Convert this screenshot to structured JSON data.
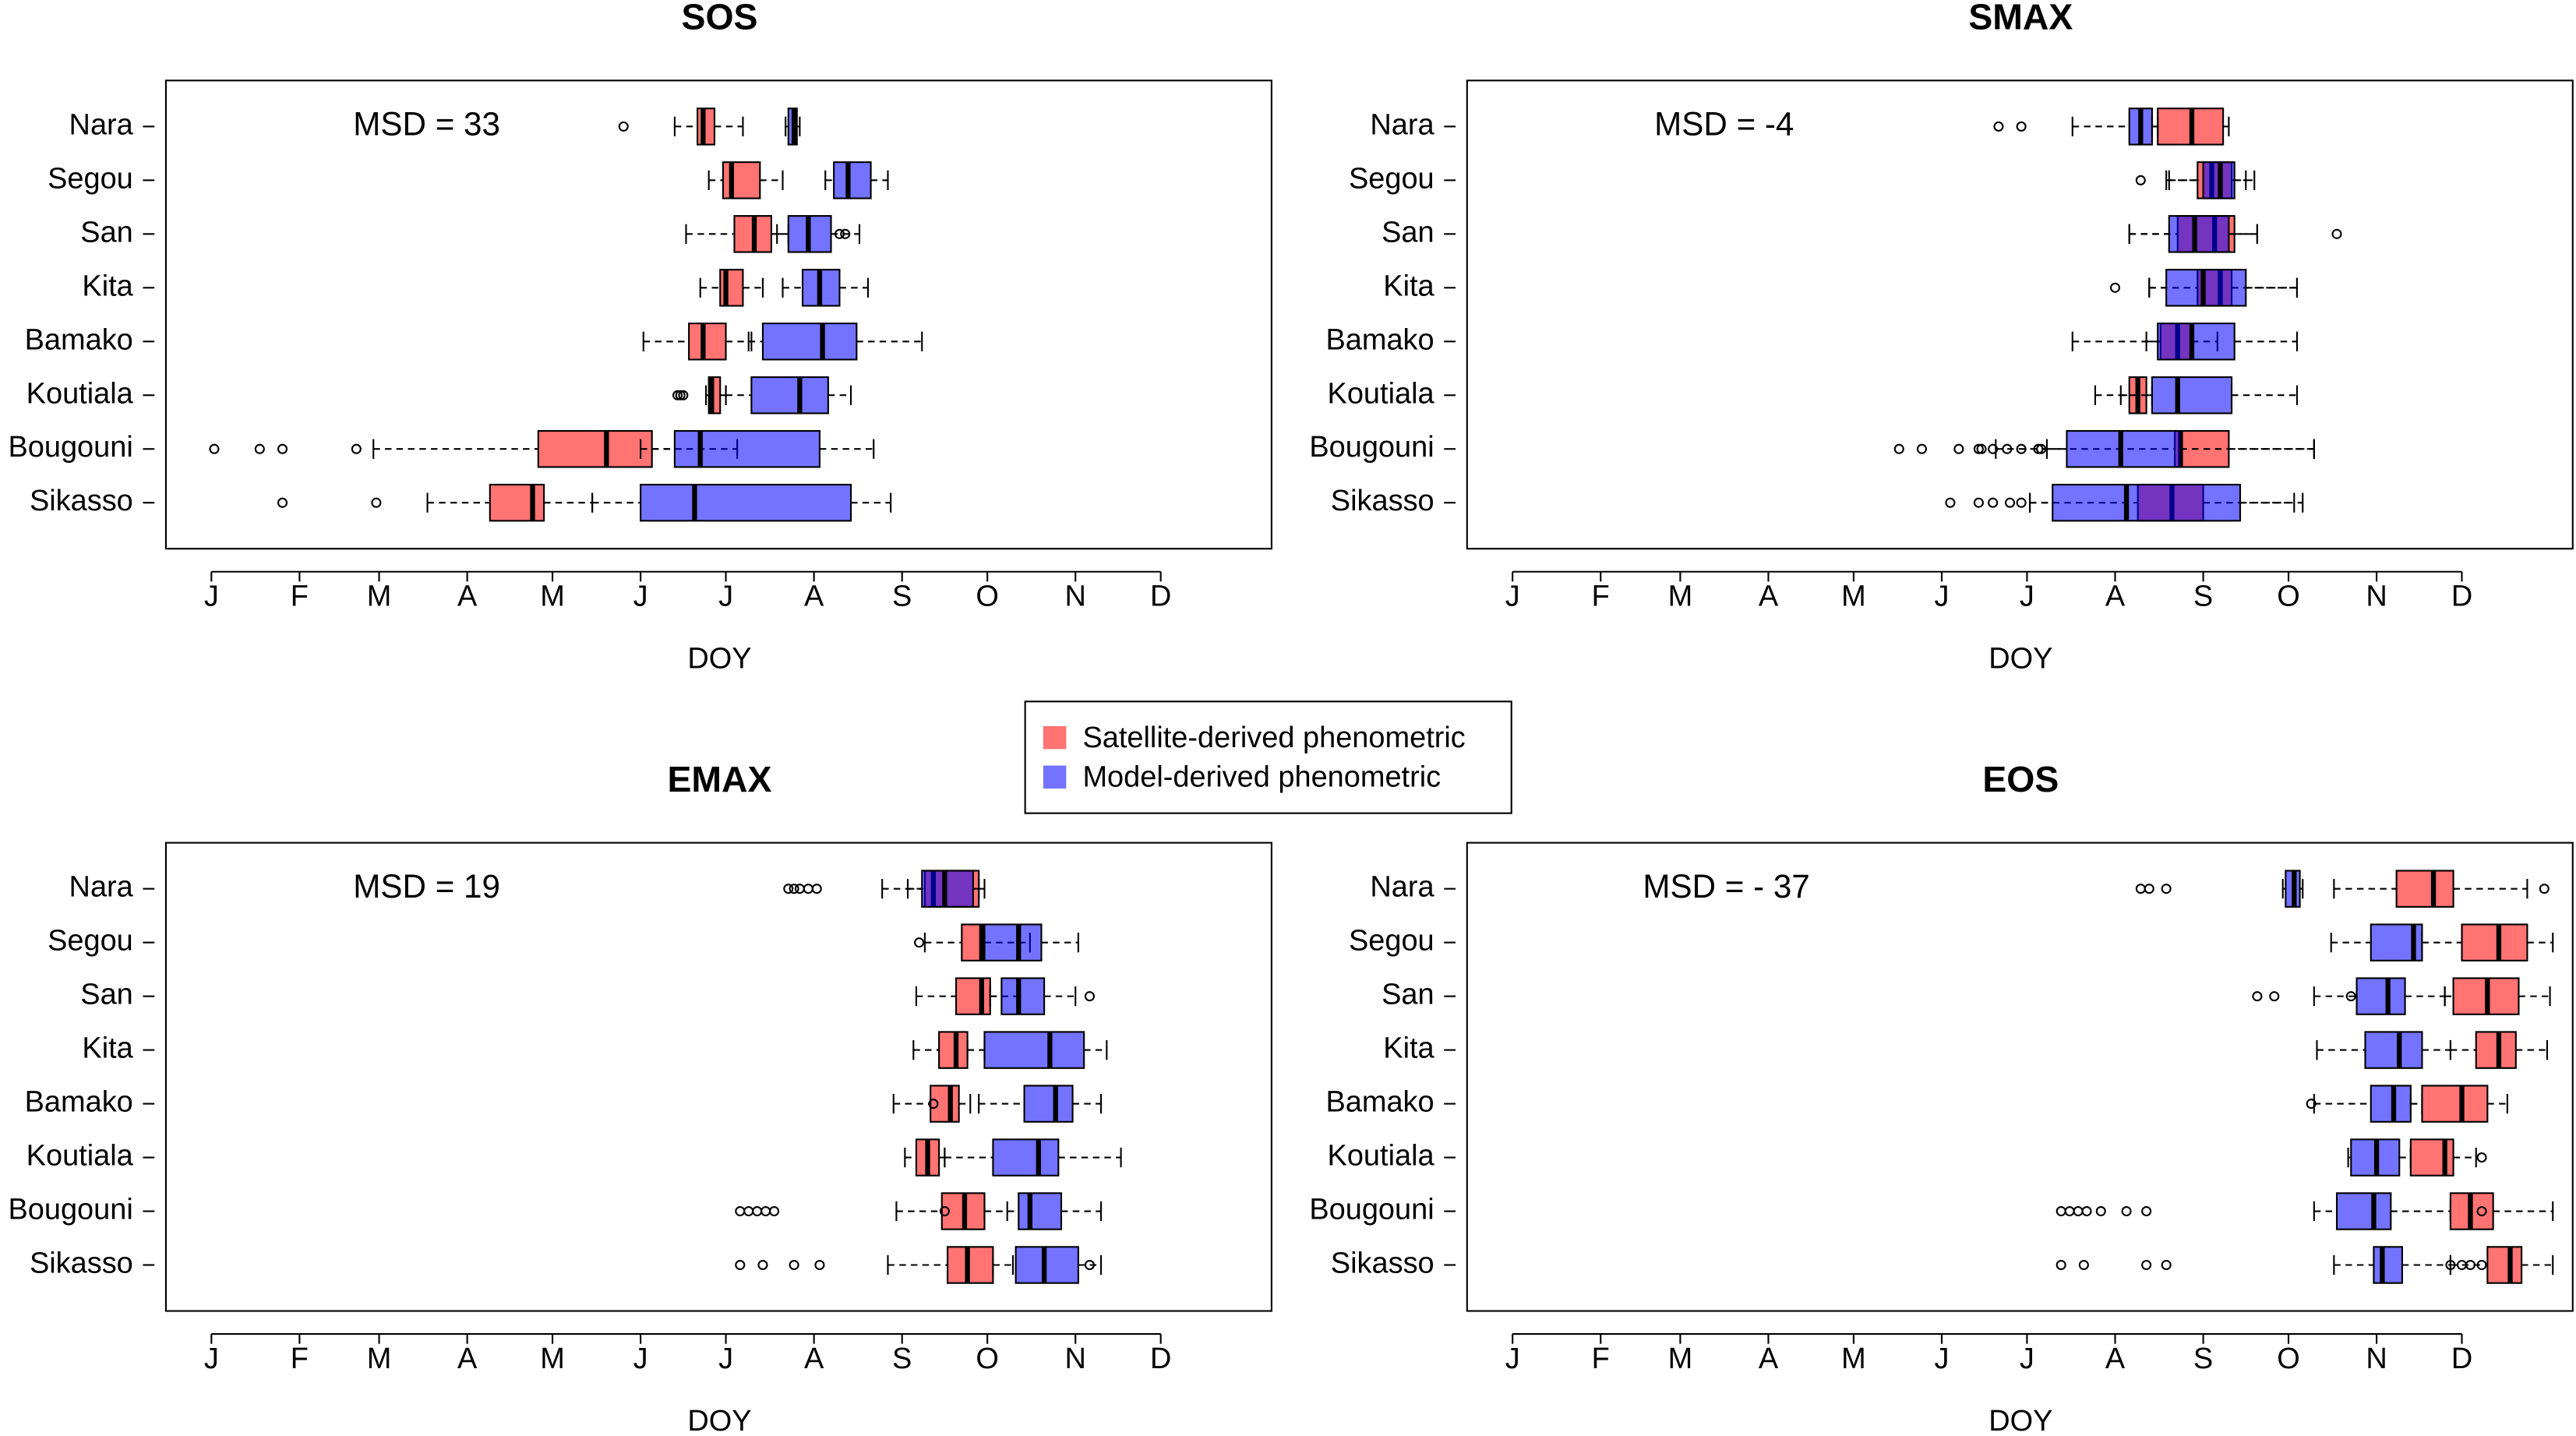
{
  "legend": [
    {
      "name": "Satellite-derived phenometric",
      "color": "#ff0000"
    },
    {
      "name": "Model-derived phenometric",
      "color": "#0000ff"
    }
  ],
  "chart_data": [
    {
      "type": "boxplot",
      "title": "SOS",
      "annotation": "MSD = 33",
      "xlabel": "DOY",
      "fill_opacity": 0.55,
      "categories": [
        "Nara",
        "Segou",
        "San",
        "Kita",
        "Bamako",
        "Koutiala",
        "Bougouni",
        "Sikasso"
      ],
      "xlim": [
        -15,
        374
      ],
      "xticks": [
        {
          "value": 1,
          "label": "J"
        },
        {
          "value": 32,
          "label": "F"
        },
        {
          "value": 60,
          "label": "M"
        },
        {
          "value": 91,
          "label": "A"
        },
        {
          "value": 121,
          "label": "M"
        },
        {
          "value": 152,
          "label": "J"
        },
        {
          "value": 182,
          "label": "J"
        },
        {
          "value": 213,
          "label": "A"
        },
        {
          "value": 244,
          "label": "S"
        },
        {
          "value": 274,
          "label": "O"
        },
        {
          "value": 305,
          "label": "N"
        },
        {
          "value": 335,
          "label": "D"
        }
      ],
      "series": [
        {
          "color": "#ff0000",
          "min": [
            164,
            176,
            168,
            173,
            153,
            175,
            58,
            77
          ],
          "q1": [
            172,
            181,
            185,
            180,
            169,
            176,
            116,
            99
          ],
          "median": [
            174,
            184,
            192,
            182,
            174,
            177,
            140,
            114
          ],
          "q3": [
            178,
            194,
            198,
            188,
            182,
            180,
            156,
            118
          ],
          "max": [
            188,
            202,
            204,
            195,
            191,
            182,
            186,
            135
          ],
          "outliers": [
            [
              146
            ],
            [],
            [],
            [],
            [],
            [
              165,
              166,
              167
            ],
            [
              2,
              18,
              26,
              52
            ],
            [
              26,
              59
            ]
          ]
        },
        {
          "color": "#0000ff",
          "min": [
            203,
            217,
            200,
            202,
            190,
            182,
            152,
            135
          ],
          "q1": [
            204,
            220,
            204,
            209,
            195,
            191,
            164,
            152
          ],
          "median": [
            206,
            225,
            211,
            215,
            216,
            208,
            173,
            171
          ],
          "q3": [
            207,
            233,
            219,
            222,
            228,
            218,
            215,
            226
          ],
          "max": [
            208,
            239,
            229,
            232,
            251,
            226,
            234,
            240
          ],
          "outliers": [
            [],
            [],
            [
              222,
              224
            ],
            [],
            [],
            [],
            [],
            []
          ]
        }
      ]
    },
    {
      "type": "boxplot",
      "title": "SMAX",
      "annotation": "MSD = -4",
      "xlabel": "DOY",
      "fill_opacity": 0.55,
      "categories": [
        "Nara",
        "Segou",
        "San",
        "Kita",
        "Bamako",
        "Koutiala",
        "Bougouni",
        "Sikasso"
      ],
      "xlim": [
        -15,
        374
      ],
      "xticks": [
        {
          "value": 1,
          "label": "J"
        },
        {
          "value": 32,
          "label": "F"
        },
        {
          "value": 60,
          "label": "M"
        },
        {
          "value": 91,
          "label": "A"
        },
        {
          "value": 121,
          "label": "M"
        },
        {
          "value": 152,
          "label": "J"
        },
        {
          "value": 182,
          "label": "J"
        },
        {
          "value": 213,
          "label": "A"
        },
        {
          "value": 244,
          "label": "S"
        },
        {
          "value": 274,
          "label": "O"
        },
        {
          "value": 305,
          "label": "N"
        },
        {
          "value": 335,
          "label": "D"
        }
      ],
      "series": [
        {
          "color": "#ff0000",
          "min": [
            226,
            231,
            218,
            225,
            224,
            215,
            189,
            183
          ],
          "q1": [
            228,
            242,
            235,
            242,
            229,
            218,
            234,
            221
          ],
          "median": [
            240,
            247,
            248,
            250,
            235,
            221,
            236,
            233
          ],
          "q3": [
            251,
            254,
            255,
            254,
            240,
            224,
            253,
            244
          ],
          "max": [
            253,
            259,
            263,
            277,
            249,
            226,
            283,
            276
          ],
          "outliers": [
            [],
            [],
            [],
            [],
            [],
            [],
            [
              165,
              170,
              175,
              180,
              186
            ],
            [
              165,
              170,
              176
            ]
          ]
        },
        {
          "color": "#0000ff",
          "min": [
            198,
            232,
            218,
            225,
            198,
            206,
            171,
            183
          ],
          "q1": [
            218,
            244,
            232,
            231,
            228,
            226,
            196,
            191
          ],
          "median": [
            222,
            250,
            241,
            244,
            240,
            235,
            215,
            217
          ],
          "q3": [
            226,
            255,
            253,
            259,
            255,
            254,
            236,
            257
          ],
          "max": [
            228,
            262,
            263,
            277,
            277,
            277,
            283,
            279
          ],
          "outliers": [
            [
              172,
              180
            ],
            [
              222
            ],
            [
              291
            ],
            [
              213
            ],
            [],
            [],
            [
              137,
              145,
              158,
              166,
              187
            ],
            [
              155,
              180
            ]
          ]
        }
      ]
    },
    {
      "type": "boxplot",
      "title": "EMAX",
      "annotation": "MSD = 19",
      "xlabel": "DOY",
      "fill_opacity": 0.55,
      "categories": [
        "Nara",
        "Segou",
        "San",
        "Kita",
        "Bamako",
        "Koutiala",
        "Bougouni",
        "Sikasso"
      ],
      "xlim": [
        -15,
        374
      ],
      "xticks": [
        {
          "value": 1,
          "label": "J"
        },
        {
          "value": 32,
          "label": "F"
        },
        {
          "value": 60,
          "label": "M"
        },
        {
          "value": 91,
          "label": "A"
        },
        {
          "value": 121,
          "label": "M"
        },
        {
          "value": 152,
          "label": "J"
        },
        {
          "value": 182,
          "label": "J"
        },
        {
          "value": 213,
          "label": "A"
        },
        {
          "value": 244,
          "label": "S"
        },
        {
          "value": 274,
          "label": "O"
        },
        {
          "value": 305,
          "label": "N"
        },
        {
          "value": 335,
          "label": "D"
        }
      ],
      "series": [
        {
          "color": "#ff0000",
          "min": [
            237,
            252,
            249,
            248,
            241,
            245,
            242,
            239
          ],
          "q1": [
            252,
            265,
            263,
            257,
            254,
            249,
            258,
            260
          ],
          "median": [
            255,
            272,
            272,
            263,
            261,
            253,
            266,
            267
          ],
          "q3": [
            271,
            273,
            275,
            267,
            264,
            257,
            273,
            276
          ],
          "max": [
            273,
            289,
            285,
            273,
            268,
            259,
            281,
            283
          ],
          "outliers": [
            [],
            [
              250
            ],
            [],
            [],
            [
              255
            ],
            [],
            [
              259
            ],
            []
          ]
        },
        {
          "color": "#0000ff",
          "min": [
            246,
            273,
            275,
            267,
            271,
            259,
            273,
            276
          ],
          "q1": [
            251,
            273,
            279,
            273,
            287,
            276,
            285,
            284
          ],
          "median": [
            259,
            285,
            285,
            296,
            298,
            292,
            289,
            294
          ],
          "q3": [
            269,
            293,
            294,
            308,
            304,
            299,
            300,
            306
          ],
          "max": [
            271,
            306,
            305,
            316,
            314,
            321,
            314,
            314
          ],
          "outliers": [
            [
              204,
              206,
              208,
              211,
              214
            ],
            [],
            [
              310
            ],
            [],
            [],
            [],
            [
              187,
              190,
              193,
              196,
              199
            ],
            [
              187,
              195,
              206,
              215,
              310
            ]
          ]
        }
      ]
    },
    {
      "type": "boxplot",
      "title": "EOS",
      "annotation": "MSD = - 37",
      "xlabel": "DOY",
      "fill_opacity": 0.55,
      "categories": [
        "Nara",
        "Segou",
        "San",
        "Kita",
        "Bamako",
        "Koutiala",
        "Bougouni",
        "Sikasso"
      ],
      "xlim": [
        -15,
        374
      ],
      "xticks": [
        {
          "value": 1,
          "label": "J"
        },
        {
          "value": 32,
          "label": "F"
        },
        {
          "value": 60,
          "label": "M"
        },
        {
          "value": 91,
          "label": "A"
        },
        {
          "value": 121,
          "label": "M"
        },
        {
          "value": 152,
          "label": "J"
        },
        {
          "value": 182,
          "label": "J"
        },
        {
          "value": 213,
          "label": "A"
        },
        {
          "value": 244,
          "label": "S"
        },
        {
          "value": 274,
          "label": "O"
        },
        {
          "value": 305,
          "label": "N"
        },
        {
          "value": 335,
          "label": "D"
        }
      ],
      "series": [
        {
          "color": "#ff0000",
          "min": [
            290,
            321,
            329,
            331,
            317,
            317,
            331,
            331
          ],
          "q1": [
            312,
            335,
            332,
            340,
            321,
            317,
            331,
            344
          ],
          "median": [
            325,
            348,
            344,
            348,
            335,
            329,
            338,
            352
          ],
          "q3": [
            332,
            358,
            355,
            354,
            344,
            332,
            346,
            356
          ],
          "max": [
            358,
            367,
            366,
            365,
            351,
            340,
            367,
            367
          ],
          "outliers": [
            [
              364
            ],
            [],
            [],
            [],
            [],
            [
              342
            ],
            [
              342
            ],
            [
              331,
              335,
              338,
              342
            ]
          ]
        },
        {
          "color": "#0000ff",
          "min": [
            272,
            289,
            283,
            284,
            283,
            295,
            283,
            290
          ],
          "q1": [
            273,
            303,
            298,
            301,
            303,
            296,
            291,
            304
          ],
          "median": [
            276,
            318,
            309,
            313,
            311,
            305,
            304,
            307
          ],
          "q3": [
            278,
            321,
            315,
            321,
            317,
            313,
            310,
            314
          ],
          "max": [
            279,
            321,
            329,
            331,
            321,
            317,
            331,
            331
          ],
          "outliers": [
            [
              222,
              225,
              231
            ],
            [],
            [
              263,
              269,
              296
            ],
            [],
            [
              282
            ],
            [],
            [
              194,
              197,
              200,
              203,
              208,
              217,
              224
            ],
            [
              194,
              202,
              224,
              231
            ]
          ]
        }
      ]
    }
  ]
}
